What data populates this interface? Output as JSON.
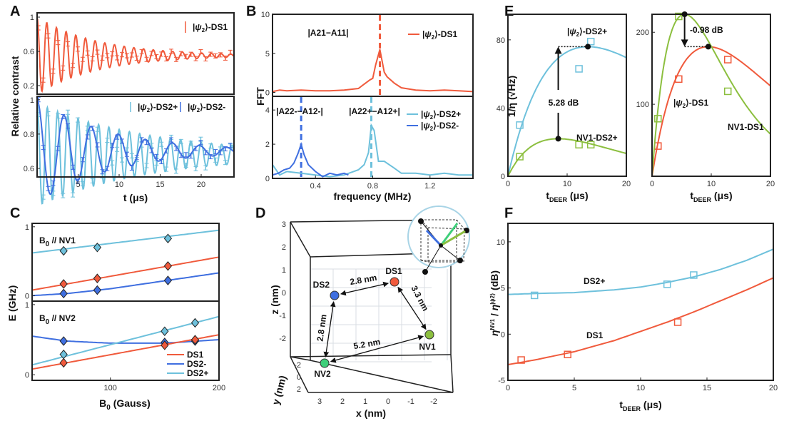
{
  "colors": {
    "ds1": "#f05a3c",
    "ds2p": "#6ec1dc",
    "ds2m": "#3f6fe0",
    "nv": "#8cbf3f",
    "nv2": "#3ecf7a",
    "black": "#111111"
  },
  "chart_data": [
    {
      "id": "A",
      "panel_label": "A",
      "type": "line",
      "xlabel": "t (μs)",
      "ylabel": "Relative contrast",
      "xlim": [
        0,
        24
      ],
      "xticks": [
        5,
        10,
        15,
        20
      ],
      "subplots": [
        {
          "ylim": [
            0.1,
            1.05
          ],
          "yticks": [
            0.2,
            0.6,
            1
          ],
          "series": [
            {
              "name": "|ψ2⟩-DS1",
              "color_key": "ds1",
              "model": {
                "offset": 0.55,
                "amp": 0.45,
                "period": 1.18,
                "decay": 7.5
              }
            }
          ],
          "legend": [
            "|ψ2⟩-DS1"
          ]
        },
        {
          "ylim": [
            0.55,
            1.02
          ],
          "yticks": [
            0.6,
            0.8,
            1
          ],
          "series": [
            {
              "name": "|ψ2⟩-DS2+",
              "color_key": "ds2p",
              "model": {
                "offset": 0.68,
                "amp": 0.3,
                "period": 1.25,
                "decay": 14
              }
            },
            {
              "name": "|ψ2⟩-DS2-",
              "color_key": "ds2m",
              "model": {
                "offset": 0.7,
                "amp": 0.3,
                "period": 3.3,
                "decay": 9
              }
            }
          ],
          "legend": [
            "|ψ2⟩-DS2+",
            "|ψ2⟩-DS2-"
          ]
        }
      ]
    },
    {
      "id": "B",
      "panel_label": "B",
      "type": "line",
      "xlabel": "frequency (MHz)",
      "ylabel": "FFT",
      "xlim": [
        0.1,
        1.5
      ],
      "xticks": [
        0.4,
        0.8,
        1.2
      ],
      "subplots": [
        {
          "ylim": [
            -0.5,
            10
          ],
          "yticks": [
            0,
            5,
            10
          ],
          "series": [
            {
              "name": "|ψ2⟩-DS1",
              "color_key": "ds1",
              "x": [
                0.1,
                0.15,
                0.2,
                0.3,
                0.4,
                0.5,
                0.6,
                0.7,
                0.75,
                0.78,
                0.8,
                0.82,
                0.85,
                0.88,
                0.9,
                0.95,
                1.0,
                1.1,
                1.2,
                1.3,
                1.4,
                1.5
              ],
              "y": [
                0.1,
                0.3,
                0.2,
                0.3,
                0.2,
                0.2,
                0.3,
                0.5,
                1.2,
                1.6,
                1.8,
                3.5,
                5.5,
                2.6,
                2.0,
                1.2,
                0.6,
                0.3,
                0.2,
                0.3,
                0.2,
                0.1
              ]
            }
          ],
          "vlines": [
            {
              "x": 0.85,
              "color_key": "ds1"
            }
          ],
          "annotations": [
            {
              "text": "|A21−A11|"
            }
          ],
          "legend": [
            "|ψ2⟩-DS1"
          ]
        },
        {
          "ylim": [
            0,
            4.8
          ],
          "yticks": [
            0,
            2,
            4
          ],
          "series": [
            {
              "name": "|ψ2⟩-DS2+",
              "color_key": "ds2p",
              "x": [
                0.1,
                0.15,
                0.2,
                0.3,
                0.4,
                0.5,
                0.6,
                0.7,
                0.74,
                0.77,
                0.79,
                0.81,
                0.84,
                0.88,
                0.95,
                1.0,
                1.1,
                1.2,
                1.3,
                1.4,
                1.5
              ],
              "y": [
                0.8,
                0.2,
                0.4,
                0.3,
                0.2,
                0.1,
                0.2,
                0.5,
                0.8,
                1.5,
                3.1,
                2.8,
                1.0,
                1.0,
                0.6,
                0.3,
                0.3,
                0.2,
                0.3,
                0.2,
                0.2
              ]
            },
            {
              "name": "|ψ2⟩-DS2-",
              "color_key": "ds2m",
              "x": [
                0.1,
                0.14,
                0.18,
                0.22,
                0.25,
                0.28,
                0.3,
                0.32,
                0.35,
                0.4,
                0.45,
                0.5,
                0.55,
                0.6,
                0.63
              ],
              "y": [
                0.2,
                0.3,
                0.5,
                0.6,
                0.9,
                1.5,
                2.0,
                1.4,
                0.8,
                0.4,
                0.1,
                0.3,
                0.2,
                0.3,
                0.2
              ]
            }
          ],
          "vlines": [
            {
              "x": 0.3,
              "color_key": "ds2m"
            },
            {
              "x": 0.79,
              "color_key": "ds2p"
            }
          ],
          "annotations": [
            {
              "text": "|A22-−A12-|"
            },
            {
              "text": "|A22+−A12+|"
            }
          ],
          "legend": [
            "|ψ2⟩-DS2+",
            "|ψ2⟩-DS2-"
          ]
        }
      ]
    },
    {
      "id": "C",
      "panel_label": "C",
      "type": "line",
      "xlabel": "B0 (Gauss)",
      "ylabel": "E (GHz)",
      "xlim": [
        28,
        200
      ],
      "xticks": [
        100,
        200
      ],
      "subplots": [
        {
          "title": "B0 // NV1",
          "ylim": [
            -0.08,
            1.05
          ],
          "yticks": [
            0,
            1
          ],
          "series": [
            {
              "name": "DS2+",
              "color_key": "ds2p",
              "x": [
                28,
                200
              ],
              "y": [
                0.62,
                0.95
              ],
              "markers": [
                [
                  57,
                  0.65
                ],
                [
                  88,
                  0.7
                ],
                [
                  153,
                  0.83
                ]
              ]
            },
            {
              "name": "DS1",
              "color_key": "ds1",
              "x": [
                28,
                200
              ],
              "y": [
                0.08,
                0.56
              ],
              "markers": [
                [
                  57,
                  0.17
                ],
                [
                  88,
                  0.25
                ],
                [
                  153,
                  0.43
                ]
              ]
            },
            {
              "name": "DS2-",
              "color_key": "ds2m",
              "x": [
                28,
                60,
                100,
                200
              ],
              "y": [
                0.0,
                0.03,
                0.1,
                0.33
              ],
              "markers": [
                [
                  57,
                  0.03
                ],
                [
                  88,
                  0.08
                ],
                [
                  153,
                  0.22
                ]
              ]
            }
          ]
        },
        {
          "title": "B0 // NV2",
          "ylim": [
            -0.08,
            1.05
          ],
          "yticks": [
            0,
            1
          ],
          "series": [
            {
              "name": "DS2-",
              "color_key": "ds2m",
              "x": [
                28,
                60,
                100,
                150,
                200
              ],
              "y": [
                0.55,
                0.48,
                0.45,
                0.45,
                0.5
              ],
              "markers": [
                [
                  57,
                  0.48
                ],
                [
                  150,
                  0.46
                ],
                [
                  178,
                  0.48
                ]
              ]
            },
            {
              "name": "DS2+",
              "color_key": "ds2p",
              "x": [
                28,
                200
              ],
              "y": [
                0.14,
                0.83
              ],
              "markers": [
                [
                  57,
                  0.29
                ],
                [
                  150,
                  0.62
                ],
                [
                  178,
                  0.74
                ]
              ]
            },
            {
              "name": "DS1",
              "color_key": "ds1",
              "x": [
                28,
                200
              ],
              "y": [
                0.08,
                0.57
              ],
              "markers": [
                [
                  57,
                  0.17
                ],
                [
                  150,
                  0.42
                ],
                [
                  178,
                  0.5
                ]
              ]
            }
          ]
        }
      ],
      "legend": [
        "DS1",
        "DS2-",
        "DS2+"
      ]
    },
    {
      "id": "D",
      "panel_label": "D",
      "type": "scatter",
      "xlabel": "x (nm)",
      "ylabel": "z (nm)",
      "zlabel": "y (nm)",
      "xticks": [
        3,
        2,
        1,
        0,
        -1,
        -2
      ],
      "yticks": [
        -2,
        0,
        2
      ],
      "zticks": [
        3,
        2,
        1,
        0,
        -1,
        -2
      ],
      "points": [
        {
          "name": "DS1",
          "color_key": "ds1"
        },
        {
          "name": "DS2",
          "color_key": "ds2m"
        },
        {
          "name": "NV1",
          "color_key": "nv"
        },
        {
          "name": "NV2",
          "color_key": "nv2"
        }
      ],
      "distances": [
        {
          "from": "DS2",
          "to": "DS1",
          "label": "2.8 nm"
        },
        {
          "from": "DS1",
          "to": "NV1",
          "label": "3.3 nm"
        },
        {
          "from": "DS2",
          "to": "NV2",
          "label": "2.8 nm"
        },
        {
          "from": "NV2",
          "to": "NV1",
          "label": "5.2 nm"
        }
      ]
    },
    {
      "id": "E1",
      "panel_label": "E",
      "type": "line",
      "xlabel": "tDEER (μs)",
      "ylabel": "1/η (√Hz)",
      "xlim": [
        0,
        20
      ],
      "ylim": [
        0,
        95
      ],
      "xticks": [
        0,
        10,
        20
      ],
      "yticks": [
        0,
        40,
        80
      ],
      "series": [
        {
          "name": "|ψ2⟩-DS2+",
          "color_key": "ds2p",
          "model": {
            "A": 76,
            "tpeak": 13.5
          },
          "points": [
            [
              2,
              30
            ],
            [
              12,
              63
            ],
            [
              14,
              79
            ]
          ]
        },
        {
          "name": "NV1-DS2+",
          "color_key": "nv",
          "model": {
            "A": 22,
            "tpeak": 8.5
          },
          "points": [
            [
              2,
              11.5
            ],
            [
              12,
              18.5
            ],
            [
              14,
              18.5
            ]
          ]
        }
      ],
      "annotation": "5.28 dB"
    },
    {
      "id": "E2",
      "type": "line",
      "xlabel": "tDEER (μs)",
      "xlim": [
        0,
        20
      ],
      "ylim": [
        0,
        225
      ],
      "xticks": [
        0,
        10,
        20
      ],
      "yticks": [
        100,
        200
      ],
      "series": [
        {
          "name": "|ψ2⟩-DS1",
          "color_key": "ds1",
          "model": {
            "A": 180,
            "tpeak": 9.5
          },
          "points": [
            [
              1,
              42
            ],
            [
              4.5,
              135
            ],
            [
              12.8,
              162
            ]
          ]
        },
        {
          "name": "NV1-DS1",
          "color_key": "nv",
          "model": {
            "A": 225,
            "tpeak": 5.5
          },
          "points": [
            [
              1,
              80
            ],
            [
              4.5,
              222
            ],
            [
              12.8,
              118
            ]
          ]
        }
      ],
      "annotation": "-0.98 dB"
    },
    {
      "id": "F",
      "panel_label": "F",
      "type": "line",
      "xlabel": "tDEER (μs)",
      "ylabel": "η^NV1 / η^|ψ2⟩ (dB)",
      "xlim": [
        0,
        20
      ],
      "ylim": [
        -5,
        12
      ],
      "xticks": [
        0,
        5,
        10,
        15,
        20
      ],
      "yticks": [
        -5,
        0,
        5,
        10
      ],
      "series": [
        {
          "name": "DS2+",
          "color_key": "ds2p",
          "x": [
            0,
            2,
            5,
            8,
            10,
            12,
            14,
            16,
            18,
            20
          ],
          "y": [
            4.3,
            4.4,
            4.5,
            4.8,
            5.1,
            5.6,
            6.2,
            7.0,
            8.0,
            9.2
          ],
          "points": [
            [
              2,
              4.2
            ],
            [
              12,
              5.4
            ],
            [
              14,
              6.4
            ]
          ]
        },
        {
          "name": "DS1",
          "color_key": "ds1",
          "x": [
            0,
            2,
            5,
            8,
            10,
            12,
            14,
            16,
            18,
            20
          ],
          "y": [
            -3.3,
            -2.8,
            -1.9,
            -0.7,
            0.3,
            1.3,
            2.4,
            3.6,
            4.8,
            6.1
          ],
          "points": [
            [
              1,
              -2.8
            ],
            [
              4.5,
              -2.2
            ],
            [
              12.8,
              1.3
            ]
          ]
        }
      ]
    }
  ]
}
